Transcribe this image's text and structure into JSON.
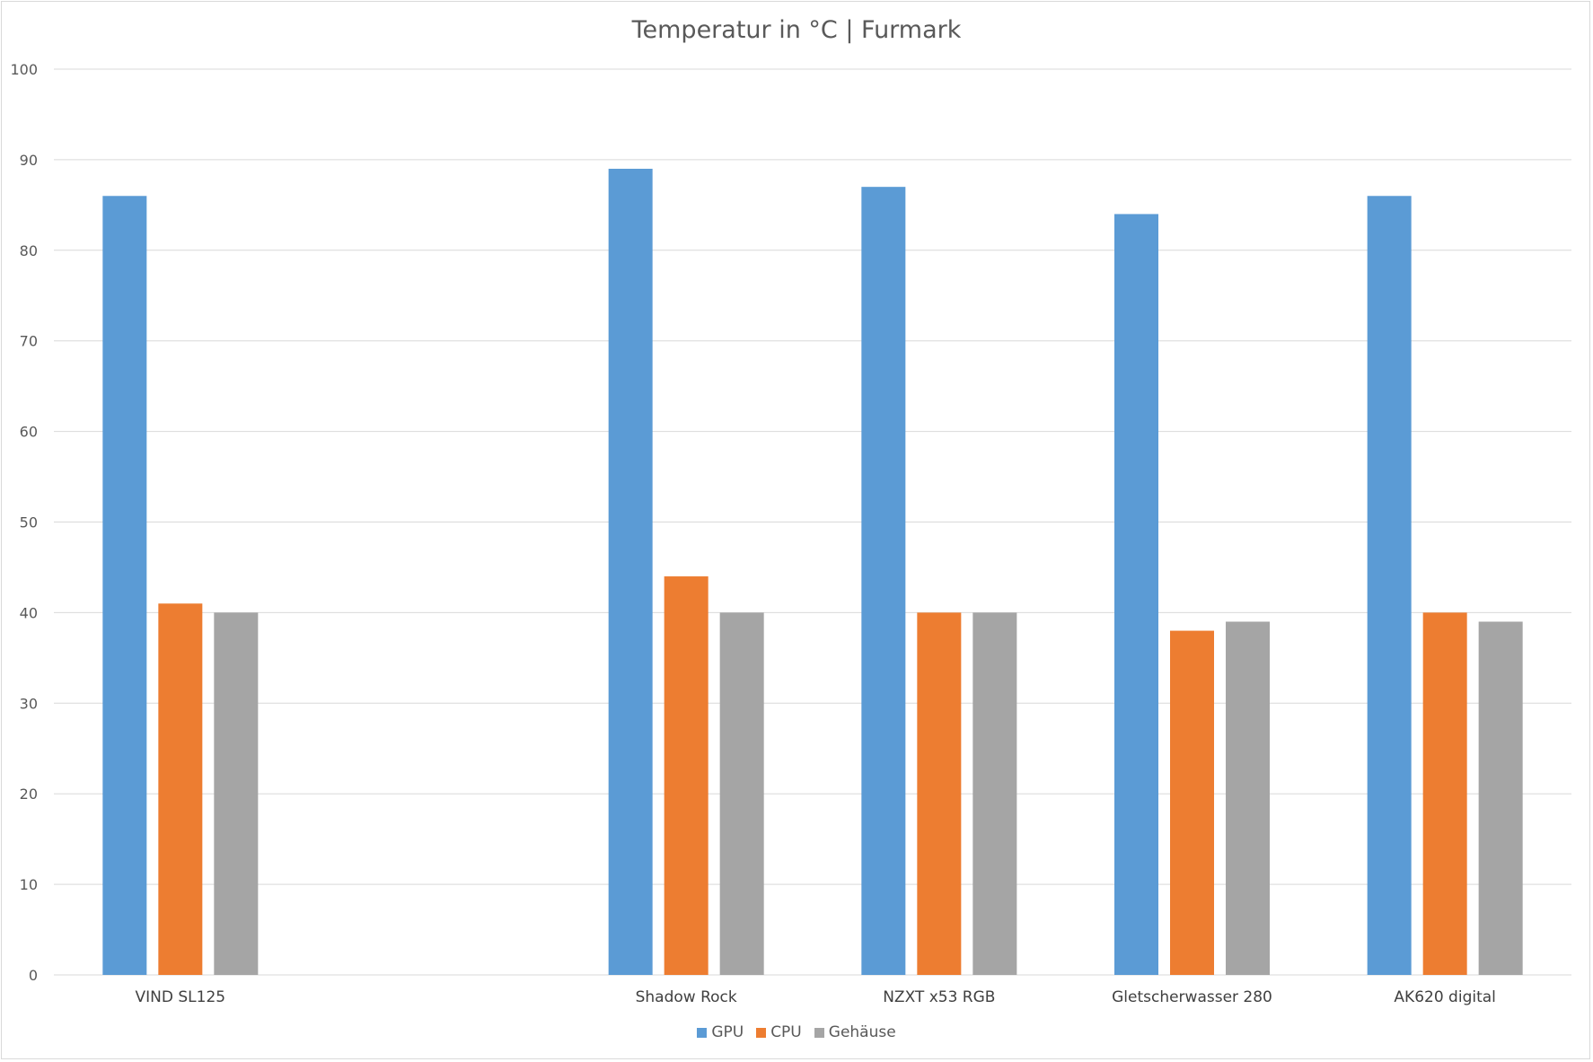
{
  "chart_data": {
    "type": "bar",
    "title": "Temperatur in °C | Furmark",
    "xlabel": "",
    "ylabel": "",
    "ylim": [
      0,
      100
    ],
    "yticks": [
      0,
      10,
      20,
      30,
      40,
      50,
      60,
      70,
      80,
      90,
      100
    ],
    "grid": true,
    "legend_position": "bottom",
    "slots": [
      "VIND SL125",
      "",
      "Shadow Rock",
      "NZXT x53 RGB",
      "Gletscherwasser 280",
      "AK620 digital"
    ],
    "categories": [
      "VIND SL125",
      "Shadow Rock",
      "NZXT x53 RGB",
      "Gletscherwasser 280",
      "AK620 digital"
    ],
    "series": [
      {
        "name": "GPU",
        "color": "#5b9bd5",
        "values": [
          86,
          89,
          87,
          84,
          86
        ]
      },
      {
        "name": "CPU",
        "color": "#ed7d31",
        "values": [
          41,
          44,
          40,
          38,
          40
        ]
      },
      {
        "name": "Gehäuse",
        "color": "#a5a5a5",
        "values": [
          40,
          40,
          40,
          39,
          39
        ]
      }
    ]
  }
}
